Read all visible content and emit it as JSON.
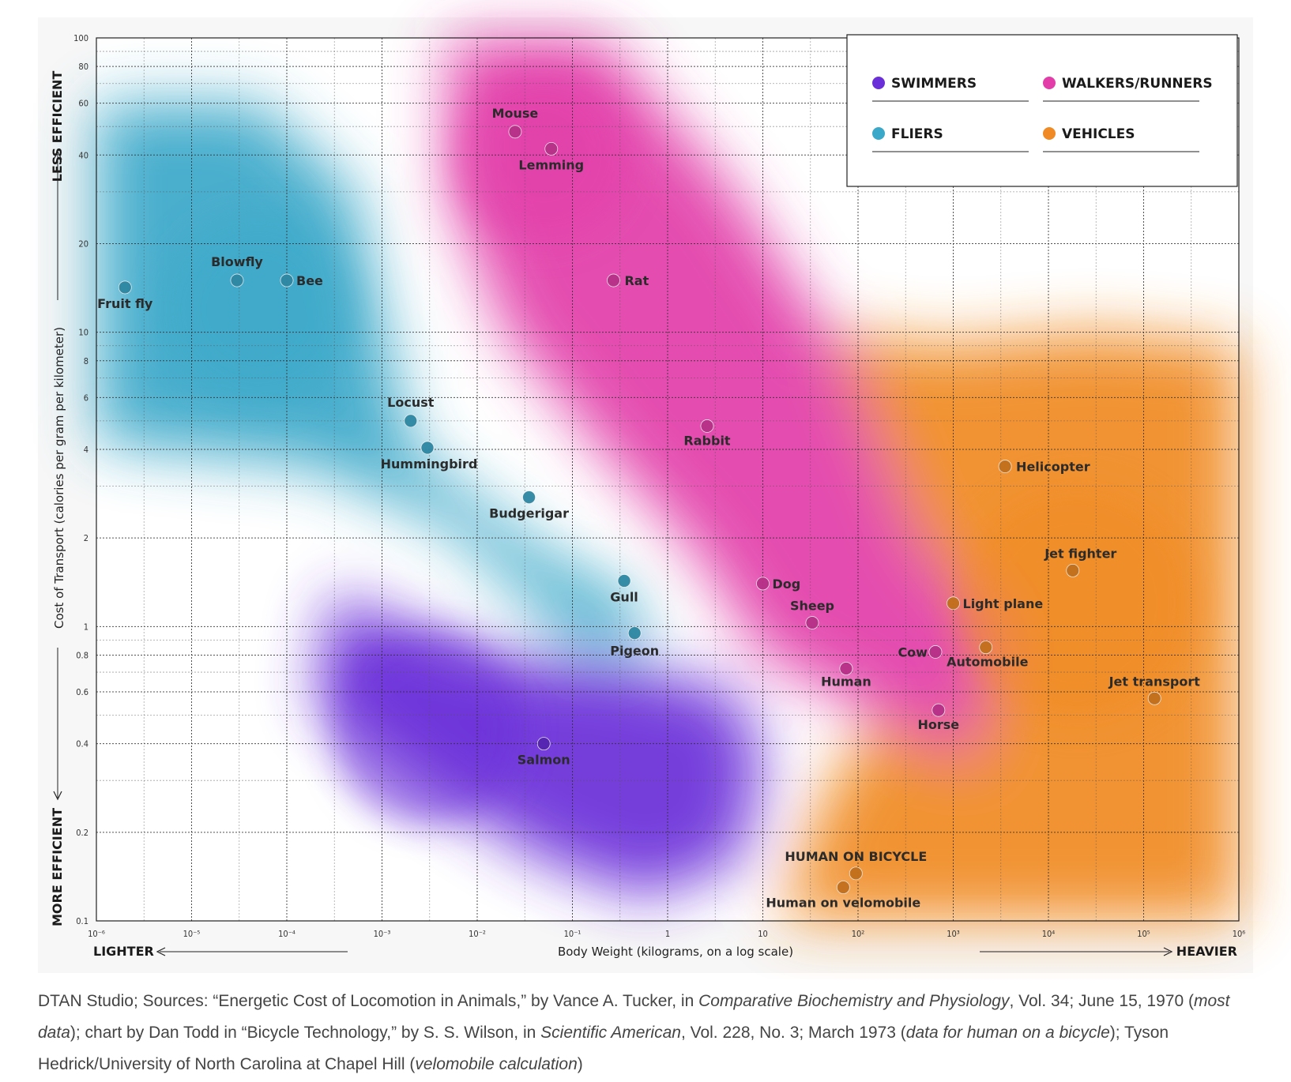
{
  "chart_data": {
    "type": "scatter",
    "xlabel": "Body Weight (kilograms, on a log scale)",
    "ylabel": "Cost of Transport (calories per gram per kilometer)",
    "x_scale": "log",
    "y_scale": "log",
    "xlim": [
      1e-06,
      1000000
    ],
    "ylim": [
      0.1,
      100
    ],
    "x_ticks": [
      {
        "value": 1e-06,
        "label": "10⁻⁶"
      },
      {
        "value": 1e-05,
        "label": "10⁻⁵"
      },
      {
        "value": 0.0001,
        "label": "10⁻⁴"
      },
      {
        "value": 0.001,
        "label": "10⁻³"
      },
      {
        "value": 0.01,
        "label": "10⁻²"
      },
      {
        "value": 0.1,
        "label": "10⁻¹"
      },
      {
        "value": 1,
        "label": "1"
      },
      {
        "value": 10,
        "label": "10"
      },
      {
        "value": 100,
        "label": "10²"
      },
      {
        "value": 1000,
        "label": "10³"
      },
      {
        "value": 10000,
        "label": "10⁴"
      },
      {
        "value": 100000,
        "label": "10⁵"
      },
      {
        "value": 1000000,
        "label": "10⁶"
      }
    ],
    "y_ticks": [
      {
        "value": 0.1,
        "label": "0.1"
      },
      {
        "value": 0.2,
        "label": "0.2"
      },
      {
        "value": 0.4,
        "label": "0.4"
      },
      {
        "value": 0.6,
        "label": "0.6"
      },
      {
        "value": 0.8,
        "label": "0.8"
      },
      {
        "value": 1,
        "label": "1"
      },
      {
        "value": 2,
        "label": "2"
      },
      {
        "value": 4,
        "label": "4"
      },
      {
        "value": 6,
        "label": "6"
      },
      {
        "value": 8,
        "label": "8"
      },
      {
        "value": 10,
        "label": "10"
      },
      {
        "value": 20,
        "label": "20"
      },
      {
        "value": 40,
        "label": "40"
      },
      {
        "value": 60,
        "label": "60"
      },
      {
        "value": 80,
        "label": "80"
      },
      {
        "value": 100,
        "label": "100"
      }
    ],
    "grid": true,
    "legend_position": "top-right",
    "top_side_label": "LESS EFFICIENT",
    "bottom_side_label": "MORE EFFICIENT",
    "left_bottom_label": "LIGHTER",
    "right_bottom_label": "HEAVIER",
    "series": [
      {
        "name": "SWIMMERS",
        "color": "#6a2fd9",
        "points": [
          {
            "label": "Salmon",
            "x": 0.05,
            "y": 0.4
          }
        ]
      },
      {
        "name": "WALKERS/RUNNERS",
        "color": "#e23da9",
        "points": [
          {
            "label": "Mouse",
            "x": 0.025,
            "y": 48
          },
          {
            "label": "Lemming",
            "x": 0.06,
            "y": 42
          },
          {
            "label": "Rat",
            "x": 0.27,
            "y": 15
          },
          {
            "label": "Rabbit",
            "x": 2.6,
            "y": 4.8
          },
          {
            "label": "Dog",
            "x": 10,
            "y": 1.4
          },
          {
            "label": "Sheep",
            "x": 33,
            "y": 1.03
          },
          {
            "label": "Human",
            "x": 75,
            "y": 0.72
          },
          {
            "label": "Cow",
            "x": 650,
            "y": 0.82
          },
          {
            "label": "Horse",
            "x": 700,
            "y": 0.52
          }
        ]
      },
      {
        "name": "FLIERS",
        "color": "#3aa8c9",
        "points": [
          {
            "label": "Fruit fly",
            "x": 2e-06,
            "y": 14.2
          },
          {
            "label": "Blowfly",
            "x": 3e-05,
            "y": 15
          },
          {
            "label": "Bee",
            "x": 0.0001,
            "y": 15
          },
          {
            "label": "Locust",
            "x": 0.002,
            "y": 5
          },
          {
            "label": "Hummingbird",
            "x": 0.003,
            "y": 4.05
          },
          {
            "label": "Budgerigar",
            "x": 0.035,
            "y": 2.75
          },
          {
            "label": "Gull",
            "x": 0.35,
            "y": 1.43
          },
          {
            "label": "Pigeon",
            "x": 0.45,
            "y": 0.95
          }
        ]
      },
      {
        "name": "VEHICLES",
        "color": "#f08a24",
        "points": [
          {
            "label": "Helicopter",
            "x": 3500,
            "y": 3.5
          },
          {
            "label": "Jet fighter",
            "x": 18000,
            "y": 1.55
          },
          {
            "label": "Light plane",
            "x": 1000,
            "y": 1.2
          },
          {
            "label": "Automobile",
            "x": 2200,
            "y": 0.85
          },
          {
            "label": "Jet transport",
            "x": 130000,
            "y": 0.57
          },
          {
            "label": "HUMAN ON BICYCLE",
            "x": 95,
            "y": 0.145
          },
          {
            "label": "Human on velomobile",
            "x": 70,
            "y": 0.13
          }
        ]
      }
    ]
  },
  "caption": {
    "p1": "DTAN Studio; Sources: “Energetic Cost of Locomotion in Animals,” by Vance A. Tucker, in ",
    "i1": "Comparative Biochemistry and Physiology",
    "p2": ", Vol. 34; June 15, 1970 (",
    "i2": "most data",
    "p3": "); chart by Dan Todd in “Bicycle Technology,” by S. S. Wilson, in ",
    "i3": "Scientific American",
    "p4": ", Vol. 228, No. 3; March 1973 (",
    "i4": "data for human on a bicycle",
    "p5": "); Tyson Hedrick/University of North Carolina at Chapel Hill (",
    "i5": "velomobile calculation",
    "p6": ")"
  }
}
